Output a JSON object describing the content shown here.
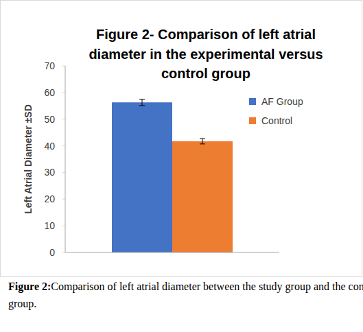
{
  "chart_data": {
    "type": "bar",
    "title": "Figure 2- Comparison of left atrial diameter in the experimental versus control group",
    "y_label": "Left Atrial Diameter ±SD",
    "categories": [
      null
    ],
    "series": [
      {
        "name": "AF Group",
        "color": "#4472c4",
        "values": [
          56.3
        ],
        "error": [
          1.2
        ]
      },
      {
        "name": "Control",
        "color": "#ed7d31",
        "values": [
          41.7
        ],
        "error": [
          1.0
        ]
      }
    ],
    "ylim": [
      0,
      70
    ],
    "yticks": [
      0,
      10,
      20,
      30,
      40,
      50,
      60,
      70
    ],
    "grid": false,
    "legend": "right",
    "caption_label": "Figure 2:",
    "caption": "Comparison of left atrial diameter between the study group and the control group."
  }
}
